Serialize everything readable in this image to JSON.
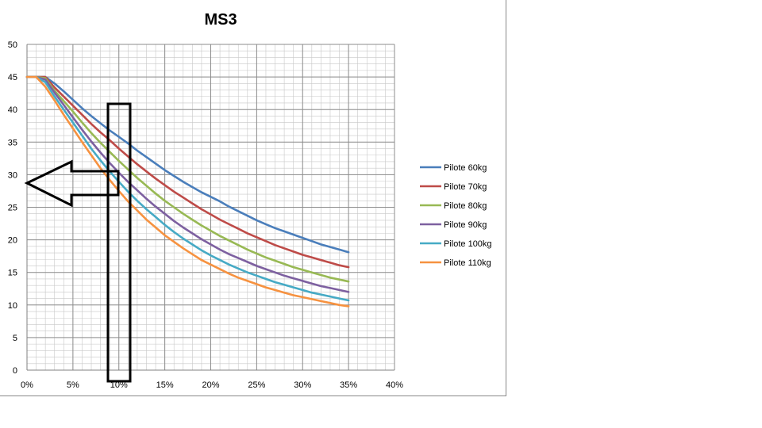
{
  "chart_data": {
    "type": "line",
    "title": "MS3",
    "xlabel": "",
    "ylabel": "",
    "xlim": [
      0,
      0.4
    ],
    "ylim": [
      0,
      50
    ],
    "x_ticks": [
      "0%",
      "5%",
      "10%",
      "15%",
      "20%",
      "25%",
      "30%",
      "35%",
      "40%"
    ],
    "y_ticks": [
      "0",
      "5",
      "10",
      "15",
      "20",
      "25",
      "30",
      "35",
      "40",
      "45",
      "50"
    ],
    "grid": true,
    "legend_position": "right",
    "x": [
      0,
      0.01,
      0.02,
      0.03,
      0.04,
      0.05,
      0.06,
      0.07,
      0.08,
      0.09,
      0.1,
      0.11,
      0.12,
      0.13,
      0.14,
      0.15,
      0.16,
      0.17,
      0.18,
      0.19,
      0.2,
      0.21,
      0.22,
      0.23,
      0.24,
      0.25,
      0.26,
      0.27,
      0.28,
      0.29,
      0.3,
      0.31,
      0.32,
      0.33,
      0.34,
      0.35
    ],
    "series": [
      {
        "name": "Pilote 60kg",
        "color": "#4a7ebb",
        "values": [
          45,
          45,
          45,
          44,
          42.8,
          41.5,
          40.2,
          39.0,
          37.9,
          36.8,
          35.8,
          34.8,
          33.7,
          32.7,
          31.7,
          30.7,
          29.8,
          28.9,
          28.1,
          27.3,
          26.6,
          25.9,
          25.1,
          24.4,
          23.7,
          23.0,
          22.4,
          21.8,
          21.3,
          20.8,
          20.3,
          19.8,
          19.3,
          18.9,
          18.5,
          18.1
        ]
      },
      {
        "name": "Pilote 70kg",
        "color": "#be4b48",
        "values": [
          45,
          45,
          45,
          43.4,
          42.0,
          40.6,
          39.2,
          37.8,
          36.5,
          35.3,
          34.0,
          32.8,
          31.6,
          30.5,
          29.4,
          28.4,
          27.4,
          26.5,
          25.6,
          24.7,
          23.9,
          23.1,
          22.4,
          21.7,
          21.0,
          20.4,
          19.8,
          19.2,
          18.7,
          18.2,
          17.7,
          17.3,
          16.9,
          16.5,
          16.1,
          15.8
        ]
      },
      {
        "name": "Pilote 80kg",
        "color": "#98b954",
        "values": [
          45,
          45,
          44.8,
          42.9,
          41.3,
          39.7,
          38.0,
          36.4,
          34.9,
          33.5,
          32.1,
          30.8,
          29.5,
          28.3,
          27.1,
          26.0,
          25.0,
          24.0,
          23.1,
          22.2,
          21.4,
          20.6,
          19.9,
          19.2,
          18.5,
          17.9,
          17.3,
          16.8,
          16.3,
          15.8,
          15.4,
          15.0,
          14.6,
          14.2,
          13.9,
          13.6
        ]
      },
      {
        "name": "Pilote 90kg",
        "color": "#7d60a0",
        "values": [
          45,
          45,
          44.6,
          42.6,
          40.7,
          38.8,
          36.9,
          35.1,
          33.4,
          31.8,
          30.3,
          28.9,
          27.6,
          26.3,
          25.1,
          24.0,
          22.9,
          21.9,
          21.0,
          20.1,
          19.3,
          18.5,
          17.8,
          17.2,
          16.6,
          16.0,
          15.5,
          15.0,
          14.5,
          14.1,
          13.7,
          13.3,
          12.9,
          12.6,
          12.3,
          12.0
        ]
      },
      {
        "name": "Pilote 100kg",
        "color": "#46aac5",
        "values": [
          45,
          45,
          44.2,
          42.0,
          40.0,
          38.0,
          36.0,
          34.0,
          32.2,
          30.5,
          28.9,
          27.4,
          26.0,
          24.7,
          23.5,
          22.3,
          21.2,
          20.2,
          19.3,
          18.4,
          17.6,
          16.9,
          16.2,
          15.6,
          15.0,
          14.5,
          14.0,
          13.5,
          13.1,
          12.7,
          12.3,
          11.9,
          11.6,
          11.3,
          11.0,
          10.7
        ]
      },
      {
        "name": "Pilote 110kg",
        "color": "#f69240",
        "values": [
          45,
          45,
          43.5,
          41.4,
          39.2,
          37.1,
          35.0,
          33.0,
          31.0,
          29.2,
          27.5,
          25.9,
          24.5,
          23.1,
          21.9,
          20.7,
          19.7,
          18.7,
          17.8,
          16.9,
          16.2,
          15.5,
          14.8,
          14.2,
          13.7,
          13.2,
          12.7,
          12.3,
          11.9,
          11.5,
          11.2,
          10.9,
          10.6,
          10.3,
          10.0,
          9.8
        ]
      }
    ],
    "annotations": [
      {
        "type": "rectangle",
        "description": "black vertical highlight box around 10%"
      },
      {
        "type": "arrow",
        "description": "black left-pointing outline arrow"
      }
    ]
  }
}
